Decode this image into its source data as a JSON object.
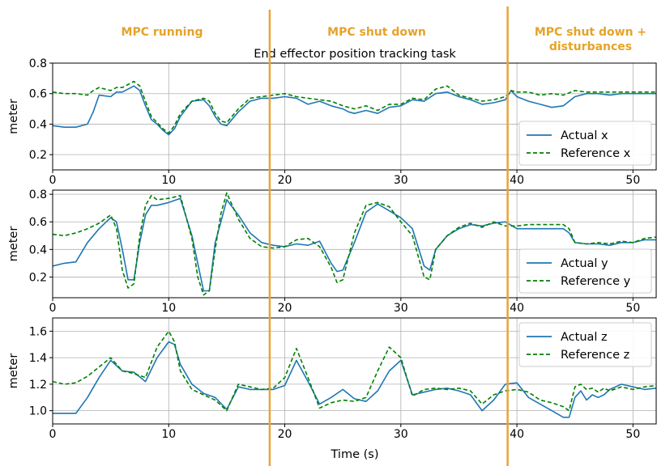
{
  "colors": {
    "actual": "#1f77b4",
    "reference": "#008000",
    "phase_marker": "#E8A33A",
    "phase_label": "#E5A329",
    "grid": "#b0b0b0"
  },
  "phase_labels": [
    "MPC running",
    "MPC shut down",
    "MPC shut down +",
    "disturbances"
  ],
  "phase_boundaries": [
    18.7,
    39.2
  ],
  "chart_data": [
    {
      "type": "line",
      "title": "End effector position tracking task",
      "xlabel": "",
      "ylabel": "meter",
      "xlim": [
        0,
        52
      ],
      "ylim": [
        0.1,
        0.8
      ],
      "xticks": [
        0,
        10,
        20,
        30,
        40,
        50
      ],
      "yticks": [
        0.2,
        0.4,
        0.6,
        0.8
      ],
      "ytick_labels": [
        "0.2",
        "0.4",
        "0.6",
        "0.8"
      ],
      "grid": true,
      "legend_position": "lower-right",
      "x": [
        0,
        1,
        2,
        3,
        3.5,
        4,
        5,
        5.5,
        6,
        7,
        7.5,
        8,
        8.5,
        9,
        9.5,
        10,
        10.5,
        11,
        12,
        13,
        13.5,
        14,
        14.5,
        15,
        16,
        17,
        18,
        19,
        20,
        21,
        22,
        23,
        24,
        25,
        25.5,
        26,
        27,
        28,
        29,
        30,
        31,
        32,
        33,
        34,
        35,
        36,
        37,
        38,
        39,
        39.5,
        40,
        41,
        42,
        43,
        44,
        45,
        46,
        47,
        48,
        49,
        50,
        51,
        52
      ],
      "series": [
        {
          "name": "Actual x",
          "style": "solid",
          "values": [
            0.39,
            0.38,
            0.38,
            0.4,
            0.48,
            0.59,
            0.58,
            0.61,
            0.61,
            0.65,
            0.62,
            0.52,
            0.43,
            0.4,
            0.36,
            0.33,
            0.37,
            0.45,
            0.55,
            0.56,
            0.52,
            0.45,
            0.4,
            0.39,
            0.48,
            0.55,
            0.57,
            0.57,
            0.58,
            0.57,
            0.53,
            0.55,
            0.52,
            0.5,
            0.48,
            0.47,
            0.49,
            0.47,
            0.51,
            0.52,
            0.56,
            0.55,
            0.6,
            0.61,
            0.58,
            0.56,
            0.53,
            0.54,
            0.56,
            0.62,
            0.58,
            0.55,
            0.53,
            0.51,
            0.52,
            0.58,
            0.6,
            0.6,
            0.59,
            0.6,
            0.6,
            0.6,
            0.6
          ]
        },
        {
          "name": "Reference x",
          "style": "dashed",
          "values": [
            0.61,
            0.6,
            0.6,
            0.59,
            0.62,
            0.64,
            0.62,
            0.64,
            0.64,
            0.68,
            0.65,
            0.55,
            0.45,
            0.41,
            0.37,
            0.34,
            0.39,
            0.47,
            0.55,
            0.57,
            0.55,
            0.47,
            0.42,
            0.41,
            0.5,
            0.57,
            0.58,
            0.59,
            0.6,
            0.58,
            0.57,
            0.56,
            0.55,
            0.52,
            0.51,
            0.5,
            0.52,
            0.49,
            0.53,
            0.53,
            0.57,
            0.56,
            0.63,
            0.65,
            0.59,
            0.57,
            0.55,
            0.56,
            0.58,
            0.62,
            0.61,
            0.61,
            0.59,
            0.6,
            0.59,
            0.62,
            0.61,
            0.61,
            0.61,
            0.61,
            0.61,
            0.61,
            0.61
          ]
        }
      ]
    },
    {
      "type": "line",
      "title": "",
      "xlabel": "",
      "ylabel": "meter",
      "xlim": [
        0,
        52
      ],
      "ylim": [
        0.05,
        0.83
      ],
      "xticks": [
        0,
        10,
        20,
        30,
        40,
        50
      ],
      "yticks": [
        0.2,
        0.4,
        0.6,
        0.8
      ],
      "ytick_labels": [
        "0.2",
        "0.4",
        "0.6",
        "0.8"
      ],
      "grid": true,
      "legend_position": "lower-right",
      "x": [
        0,
        1,
        2,
        3,
        4,
        5,
        5.5,
        6,
        6.5,
        7,
        7.5,
        8,
        8.5,
        9,
        10,
        11,
        12,
        12.5,
        13,
        13.5,
        14,
        14.5,
        15,
        16,
        17,
        18,
        19,
        20,
        21,
        22,
        23,
        24,
        24.5,
        25,
        26,
        27,
        28,
        29,
        30,
        31,
        32,
        32.5,
        33,
        34,
        35,
        36,
        37,
        38,
        39,
        40,
        41,
        42,
        43,
        44,
        44.5,
        45,
        46,
        47,
        48,
        49,
        50,
        51,
        52
      ],
      "series": [
        {
          "name": "Actual y",
          "style": "solid",
          "values": [
            0.28,
            0.3,
            0.31,
            0.45,
            0.55,
            0.63,
            0.6,
            0.4,
            0.18,
            0.18,
            0.45,
            0.65,
            0.72,
            0.72,
            0.74,
            0.77,
            0.5,
            0.3,
            0.1,
            0.1,
            0.45,
            0.6,
            0.76,
            0.65,
            0.52,
            0.45,
            0.43,
            0.42,
            0.44,
            0.43,
            0.46,
            0.3,
            0.24,
            0.25,
            0.45,
            0.67,
            0.73,
            0.68,
            0.63,
            0.55,
            0.28,
            0.25,
            0.4,
            0.5,
            0.55,
            0.58,
            0.57,
            0.59,
            0.6,
            0.55,
            0.55,
            0.55,
            0.55,
            0.55,
            0.52,
            0.45,
            0.44,
            0.44,
            0.43,
            0.45,
            0.45,
            0.47,
            0.47
          ]
        },
        {
          "name": "Reference y",
          "style": "dashed",
          "values": [
            0.51,
            0.5,
            0.52,
            0.55,
            0.59,
            0.65,
            0.55,
            0.25,
            0.12,
            0.15,
            0.5,
            0.72,
            0.79,
            0.76,
            0.77,
            0.79,
            0.48,
            0.2,
            0.07,
            0.1,
            0.4,
            0.66,
            0.81,
            0.62,
            0.48,
            0.42,
            0.41,
            0.42,
            0.47,
            0.48,
            0.42,
            0.27,
            0.16,
            0.18,
            0.52,
            0.72,
            0.74,
            0.71,
            0.6,
            0.5,
            0.2,
            0.18,
            0.4,
            0.5,
            0.56,
            0.59,
            0.56,
            0.6,
            0.57,
            0.57,
            0.58,
            0.58,
            0.58,
            0.58,
            0.55,
            0.45,
            0.44,
            0.45,
            0.44,
            0.46,
            0.45,
            0.48,
            0.49
          ]
        }
      ]
    },
    {
      "type": "line",
      "title": "",
      "xlabel": "Time (s)",
      "ylabel": "meter",
      "xlim": [
        0,
        52
      ],
      "ylim": [
        0.9,
        1.7
      ],
      "xticks": [
        0,
        10,
        20,
        30,
        40,
        50
      ],
      "yticks": [
        1.0,
        1.2,
        1.4,
        1.6
      ],
      "ytick_labels": [
        "1.0",
        "1.2",
        "1.4",
        "1.6"
      ],
      "grid": true,
      "legend_position": "upper-right",
      "x": [
        0,
        1,
        2,
        3,
        4,
        5,
        6,
        7,
        8,
        9,
        10,
        10.5,
        11,
        12,
        13,
        14,
        15,
        16,
        17,
        18,
        19,
        20,
        21,
        22,
        23,
        24,
        25,
        26,
        27,
        28,
        29,
        30,
        31,
        32,
        33,
        34,
        35,
        36,
        37,
        38,
        39,
        40,
        41,
        42,
        43,
        44,
        44.5,
        45,
        45.5,
        46,
        46.5,
        47,
        47.5,
        48,
        49,
        50,
        51,
        52
      ],
      "series": [
        {
          "name": "Actual z",
          "style": "solid",
          "values": [
            0.98,
            0.98,
            0.98,
            1.1,
            1.25,
            1.38,
            1.3,
            1.29,
            1.22,
            1.4,
            1.52,
            1.5,
            1.35,
            1.2,
            1.13,
            1.1,
            1.01,
            1.18,
            1.16,
            1.16,
            1.16,
            1.19,
            1.38,
            1.22,
            1.05,
            1.1,
            1.16,
            1.09,
            1.07,
            1.15,
            1.3,
            1.38,
            1.12,
            1.14,
            1.16,
            1.17,
            1.15,
            1.12,
            1.0,
            1.08,
            1.2,
            1.21,
            1.1,
            1.05,
            1.0,
            0.95,
            0.95,
            1.1,
            1.15,
            1.08,
            1.12,
            1.1,
            1.12,
            1.16,
            1.2,
            1.18,
            1.16,
            1.17
          ]
        },
        {
          "name": "Reference z",
          "style": "dashed",
          "values": [
            1.22,
            1.2,
            1.21,
            1.26,
            1.33,
            1.4,
            1.3,
            1.28,
            1.25,
            1.48,
            1.6,
            1.52,
            1.3,
            1.16,
            1.12,
            1.08,
            1.0,
            1.2,
            1.18,
            1.16,
            1.17,
            1.25,
            1.47,
            1.25,
            1.02,
            1.06,
            1.08,
            1.07,
            1.1,
            1.3,
            1.48,
            1.4,
            1.11,
            1.16,
            1.17,
            1.16,
            1.17,
            1.15,
            1.05,
            1.12,
            1.15,
            1.16,
            1.14,
            1.08,
            1.06,
            1.03,
            1.0,
            1.18,
            1.2,
            1.16,
            1.17,
            1.14,
            1.17,
            1.15,
            1.18,
            1.16,
            1.18,
            1.19
          ]
        }
      ]
    }
  ]
}
